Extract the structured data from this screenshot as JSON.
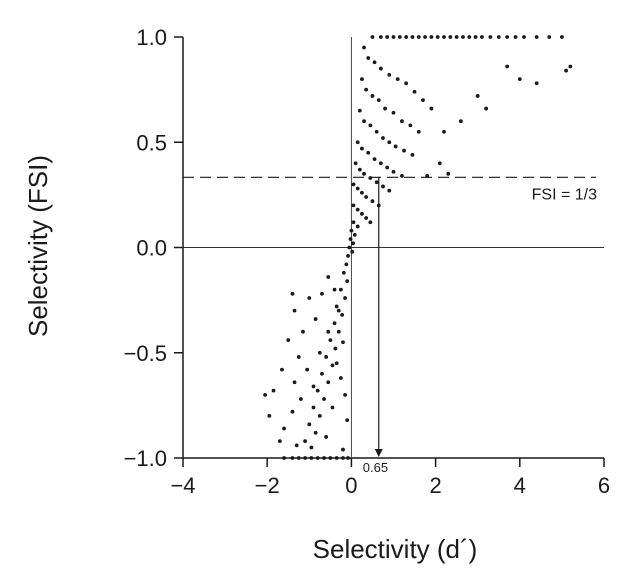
{
  "chart_data": {
    "type": "scatter",
    "xlabel": "Selectivity (d´)",
    "ylabel": "Selectivity (FSI)",
    "xlim": [
      -4,
      6
    ],
    "ylim": [
      -1,
      1
    ],
    "xticks": [
      -4,
      -2,
      0,
      2,
      4,
      6
    ],
    "yticks": [
      -1.0,
      -0.5,
      0.0,
      0.5,
      1.0
    ],
    "xtick_labels": [
      "−4",
      "−2",
      "0",
      "2",
      "4",
      "6"
    ],
    "ytick_labels": [
      "−1.0",
      "−0.5",
      "0.0",
      "0.5",
      "1.0"
    ],
    "grid": false,
    "point_color": "#1a1a1a",
    "reference_lines": {
      "zero_y": 0,
      "zero_x": 0,
      "fsi_threshold": 0.3333
    },
    "annotations": {
      "fsi_label": "FSI = 1/3",
      "arrow_x": 0.65,
      "arrow_label": "0.65"
    },
    "series": [
      {
        "points": [
          [
            -1.6,
            -1.0
          ],
          [
            -1.4,
            -1.0
          ],
          [
            -1.25,
            -1.0
          ],
          [
            -1.1,
            -1.0
          ],
          [
            -0.95,
            -1.0
          ],
          [
            -0.8,
            -1.0
          ],
          [
            -0.65,
            -1.0
          ],
          [
            -0.5,
            -1.0
          ],
          [
            -0.35,
            -1.0
          ],
          [
            -0.2,
            -1.0
          ],
          [
            -0.08,
            -1.0
          ],
          [
            0.5,
            1.0
          ],
          [
            0.7,
            1.0
          ],
          [
            0.85,
            1.0
          ],
          [
            1.0,
            1.0
          ],
          [
            1.15,
            1.0
          ],
          [
            1.3,
            1.0
          ],
          [
            1.45,
            1.0
          ],
          [
            1.6,
            1.0
          ],
          [
            1.75,
            1.0
          ],
          [
            1.9,
            1.0
          ],
          [
            2.05,
            1.0
          ],
          [
            2.2,
            1.0
          ],
          [
            2.35,
            1.0
          ],
          [
            2.5,
            1.0
          ],
          [
            2.65,
            1.0
          ],
          [
            2.8,
            1.0
          ],
          [
            2.95,
            1.0
          ],
          [
            3.1,
            1.0
          ],
          [
            3.3,
            1.0
          ],
          [
            3.5,
            1.0
          ],
          [
            3.7,
            1.0
          ],
          [
            3.9,
            1.0
          ],
          [
            4.1,
            1.0
          ],
          [
            4.4,
            1.0
          ],
          [
            4.7,
            1.0
          ],
          [
            5.0,
            1.0
          ],
          [
            5.1,
            0.84
          ],
          [
            5.2,
            0.86
          ],
          [
            4.4,
            0.78
          ],
          [
            4.0,
            0.8
          ],
          [
            3.7,
            0.86
          ],
          [
            2.6,
            0.6
          ],
          [
            3.0,
            0.72
          ],
          [
            3.2,
            0.66
          ],
          [
            2.2,
            0.55
          ],
          [
            2.1,
            0.4
          ],
          [
            2.3,
            0.35
          ],
          [
            1.8,
            0.34
          ],
          [
            0.3,
            0.95
          ],
          [
            0.4,
            0.9
          ],
          [
            0.55,
            0.88
          ],
          [
            0.7,
            0.85
          ],
          [
            0.9,
            0.82
          ],
          [
            1.1,
            0.8
          ],
          [
            1.3,
            0.78
          ],
          [
            1.5,
            0.74
          ],
          [
            1.7,
            0.7
          ],
          [
            1.9,
            0.66
          ],
          [
            0.25,
            0.8
          ],
          [
            0.35,
            0.75
          ],
          [
            0.5,
            0.72
          ],
          [
            0.65,
            0.7
          ],
          [
            0.8,
            0.66
          ],
          [
            1.0,
            0.64
          ],
          [
            1.2,
            0.6
          ],
          [
            1.4,
            0.58
          ],
          [
            1.6,
            0.55
          ],
          [
            0.2,
            0.65
          ],
          [
            0.3,
            0.6
          ],
          [
            0.45,
            0.58
          ],
          [
            0.6,
            0.55
          ],
          [
            0.75,
            0.52
          ],
          [
            0.9,
            0.5
          ],
          [
            1.05,
            0.48
          ],
          [
            1.25,
            0.46
          ],
          [
            1.45,
            0.44
          ],
          [
            0.15,
            0.5
          ],
          [
            0.25,
            0.47
          ],
          [
            0.4,
            0.45
          ],
          [
            0.55,
            0.42
          ],
          [
            0.7,
            0.4
          ],
          [
            0.85,
            0.38
          ],
          [
            1.0,
            0.36
          ],
          [
            1.2,
            0.34
          ],
          [
            0.1,
            0.4
          ],
          [
            0.2,
            0.37
          ],
          [
            0.3,
            0.35
          ],
          [
            0.45,
            0.33
          ],
          [
            0.6,
            0.31
          ],
          [
            0.75,
            0.29
          ],
          [
            0.9,
            0.27
          ],
          [
            0.05,
            0.3
          ],
          [
            0.15,
            0.28
          ],
          [
            0.25,
            0.26
          ],
          [
            0.35,
            0.24
          ],
          [
            0.5,
            0.22
          ],
          [
            0.65,
            0.2
          ],
          [
            0.05,
            0.2
          ],
          [
            0.15,
            0.18
          ],
          [
            0.25,
            0.16
          ],
          [
            0.35,
            0.14
          ],
          [
            0.45,
            0.12
          ],
          [
            0.05,
            0.12
          ],
          [
            0.15,
            0.1
          ],
          [
            0.0,
            0.08
          ],
          [
            0.08,
            0.06
          ],
          [
            -0.02,
            0.04
          ],
          [
            0.04,
            0.02
          ],
          [
            -0.05,
            0.0
          ],
          [
            0.02,
            -0.02
          ],
          [
            -0.08,
            -0.04
          ],
          [
            -0.12,
            -0.08
          ],
          [
            -0.18,
            -0.12
          ],
          [
            -0.1,
            -0.16
          ],
          [
            -0.25,
            -0.2
          ],
          [
            -0.15,
            -0.24
          ],
          [
            -0.35,
            -0.28
          ],
          [
            -0.22,
            -0.32
          ],
          [
            -0.4,
            -0.36
          ],
          [
            -0.3,
            -0.4
          ],
          [
            -0.5,
            -0.44
          ],
          [
            -0.38,
            -0.48
          ],
          [
            -0.6,
            -0.52
          ],
          [
            -0.45,
            -0.56
          ],
          [
            -0.7,
            -0.6
          ],
          [
            -0.55,
            -0.64
          ],
          [
            -0.8,
            -0.68
          ],
          [
            -0.65,
            -0.72
          ],
          [
            -0.9,
            -0.76
          ],
          [
            -0.75,
            -0.8
          ],
          [
            -1.0,
            -0.84
          ],
          [
            -0.85,
            -0.88
          ],
          [
            -1.1,
            -0.92
          ],
          [
            -0.95,
            -0.95
          ],
          [
            -0.3,
            -0.3
          ],
          [
            -0.55,
            -0.4
          ],
          [
            -0.2,
            -0.45
          ],
          [
            -0.75,
            -0.5
          ],
          [
            -0.35,
            -0.55
          ],
          [
            -1.05,
            -0.58
          ],
          [
            -0.25,
            -0.62
          ],
          [
            -0.9,
            -0.66
          ],
          [
            -0.15,
            -0.7
          ],
          [
            -1.2,
            -0.72
          ],
          [
            -0.45,
            -0.76
          ],
          [
            -1.4,
            -0.78
          ],
          [
            -0.1,
            -0.82
          ],
          [
            -1.6,
            -0.86
          ],
          [
            -0.6,
            -0.9
          ],
          [
            -1.3,
            -0.94
          ],
          [
            -0.2,
            -0.96
          ],
          [
            -1.5,
            -0.44
          ],
          [
            -1.25,
            -0.52
          ],
          [
            -1.65,
            -0.58
          ],
          [
            -1.35,
            -0.64
          ],
          [
            -1.85,
            -0.68
          ],
          [
            -2.05,
            -0.7
          ],
          [
            -1.95,
            -0.8
          ],
          [
            -1.7,
            -0.92
          ],
          [
            -1.15,
            -0.4
          ],
          [
            -1.35,
            -0.3
          ],
          [
            -0.85,
            -0.34
          ],
          [
            -1.0,
            -0.24
          ],
          [
            -0.7,
            -0.22
          ],
          [
            -1.4,
            -0.22
          ],
          [
            -0.4,
            -0.2
          ],
          [
            -0.55,
            -0.14
          ]
        ]
      }
    ]
  }
}
